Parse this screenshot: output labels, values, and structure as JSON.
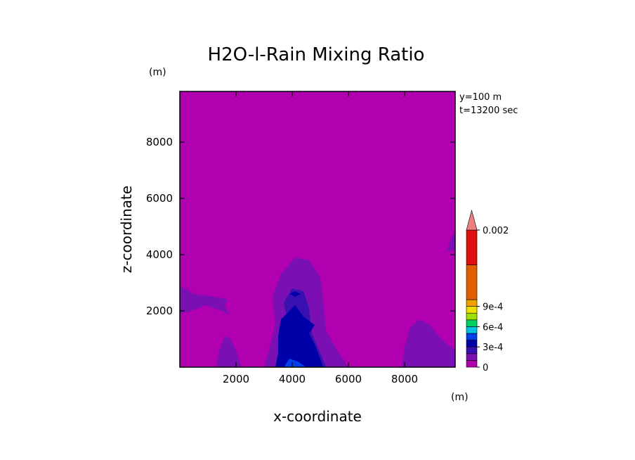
{
  "chart_data": {
    "type": "heatmap",
    "subtype": "filled-contour",
    "title": "H2O-l-Rain Mixing Ratio",
    "xlabel": "x-coordinate",
    "ylabel": "z-coordinate",
    "x_unit": "(m)",
    "y_unit": "(m)",
    "xlim": [
      0,
      9800
    ],
    "ylim": [
      0,
      9800
    ],
    "x_ticks": [
      2000,
      4000,
      6000,
      8000
    ],
    "y_ticks": [
      2000,
      4000,
      6000,
      8000
    ],
    "info_lines": [
      "y=100 m",
      "t=13200 sec"
    ],
    "colorbar": {
      "levels": [
        0,
        0.0001,
        0.0002,
        0.0003,
        0.0004,
        0.0005,
        0.0006,
        0.0007,
        0.0008,
        0.0009,
        0.001,
        0.0015,
        0.002
      ],
      "colors": [
        "#b000b0",
        "#7a10b4",
        "#3a10b0",
        "#0000a8",
        "#0040e8",
        "#00c0e0",
        "#00d060",
        "#a0e000",
        "#f0e000",
        "#f0a000",
        "#e06000",
        "#e01010",
        "#f08080"
      ],
      "extend": "max",
      "labels": [
        {
          "level": 0,
          "text": "0"
        },
        {
          "level": 0.0003,
          "text": "3e-4"
        },
        {
          "level": 0.0006,
          "text": "6e-4"
        },
        {
          "level": 0.0009,
          "text": "9e-4"
        },
        {
          "level": 0.002,
          "text": "0.002"
        }
      ]
    },
    "background_color": "#b000b0",
    "regions": [
      {
        "level": 0.0001,
        "points": [
          [
            0,
            2900
          ],
          [
            500,
            2600
          ],
          [
            1200,
            2500
          ],
          [
            1700,
            2400
          ],
          [
            1600,
            2200
          ],
          [
            1750,
            1850
          ],
          [
            1500,
            2000
          ],
          [
            900,
            2200
          ],
          [
            400,
            2000
          ],
          [
            0,
            1900
          ]
        ]
      },
      {
        "level": 0.0001,
        "points": [
          [
            1300,
            0
          ],
          [
            1400,
            600
          ],
          [
            1600,
            1100
          ],
          [
            1800,
            1000
          ],
          [
            2000,
            600
          ],
          [
            2200,
            0
          ]
        ]
      },
      {
        "level": 0.0001,
        "points": [
          [
            3000,
            0
          ],
          [
            3200,
            700
          ],
          [
            3400,
            1500
          ],
          [
            3300,
            2500
          ],
          [
            3600,
            3300
          ],
          [
            4100,
            3900
          ],
          [
            4600,
            3800
          ],
          [
            5000,
            3200
          ],
          [
            5100,
            2400
          ],
          [
            5200,
            1300
          ],
          [
            5600,
            600
          ],
          [
            6000,
            0
          ]
        ]
      },
      {
        "level": 0.0001,
        "points": [
          [
            7900,
            0
          ],
          [
            8000,
            700
          ],
          [
            8200,
            1400
          ],
          [
            8500,
            1700
          ],
          [
            8900,
            1500
          ],
          [
            9300,
            1000
          ],
          [
            9800,
            600
          ],
          [
            9800,
            0
          ]
        ]
      },
      {
        "level": 0.0001,
        "points": [
          [
            9500,
            4100
          ],
          [
            9700,
            4700
          ],
          [
            9800,
            4700
          ],
          [
            9800,
            4200
          ]
        ]
      },
      {
        "level": 0.0002,
        "points": [
          [
            3700,
            0
          ],
          [
            3700,
            700
          ],
          [
            3900,
            1300
          ],
          [
            3700,
            2300
          ],
          [
            4000,
            2800
          ],
          [
            4400,
            2700
          ],
          [
            4600,
            2100
          ],
          [
            4700,
            1200
          ],
          [
            5000,
            500
          ],
          [
            5200,
            0
          ]
        ]
      },
      {
        "level": 0.0003,
        "points": [
          [
            3400,
            0
          ],
          [
            3500,
            500
          ],
          [
            3500,
            1100
          ],
          [
            3600,
            1700
          ],
          [
            3800,
            1900
          ],
          [
            4100,
            2200
          ],
          [
            4400,
            1800
          ],
          [
            4800,
            1500
          ],
          [
            4600,
            1200
          ],
          [
            4800,
            800
          ],
          [
            5000,
            300
          ],
          [
            5100,
            0
          ]
        ]
      },
      {
        "level": 0.0003,
        "points": [
          [
            3900,
            2600
          ],
          [
            4100,
            2700
          ],
          [
            4300,
            2600
          ],
          [
            4100,
            2500
          ]
        ]
      },
      {
        "level": 0.0004,
        "points": [
          [
            3700,
            0
          ],
          [
            3900,
            300
          ],
          [
            4200,
            200
          ],
          [
            4500,
            0
          ]
        ]
      }
    ]
  }
}
